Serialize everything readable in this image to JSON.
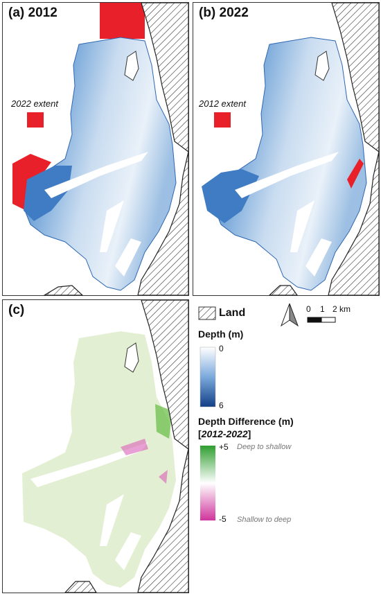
{
  "panels": {
    "a": {
      "label": "(a) 2012",
      "extent_label": "2022 extent"
    },
    "b": {
      "label": "(b) 2022",
      "extent_label": "2012 extent"
    },
    "c": {
      "label": "(c)"
    }
  },
  "legend": {
    "land_label": "Land",
    "depth_title": "Depth (m)",
    "depth_min": "0",
    "depth_max": "6",
    "diff_title": "Depth Difference (m)",
    "diff_bracket_open": "[",
    "diff_years": "2012-2022",
    "diff_bracket_close": "]",
    "diff_max": "+5",
    "diff_min": "-5",
    "diff_max_desc": "Deep to shallow",
    "diff_min_desc": "Shallow to deep"
  },
  "scale_bar": {
    "ticks": [
      "0",
      "1",
      "2 km"
    ]
  },
  "colors": {
    "depth_shallow": "#ffffff",
    "depth_deep": "#1f5aa8",
    "extent_red": "#e8202a",
    "diff_positive": "#3aa33a",
    "diff_negative": "#d63fa8",
    "diff_fill": "#e3efd2"
  }
}
